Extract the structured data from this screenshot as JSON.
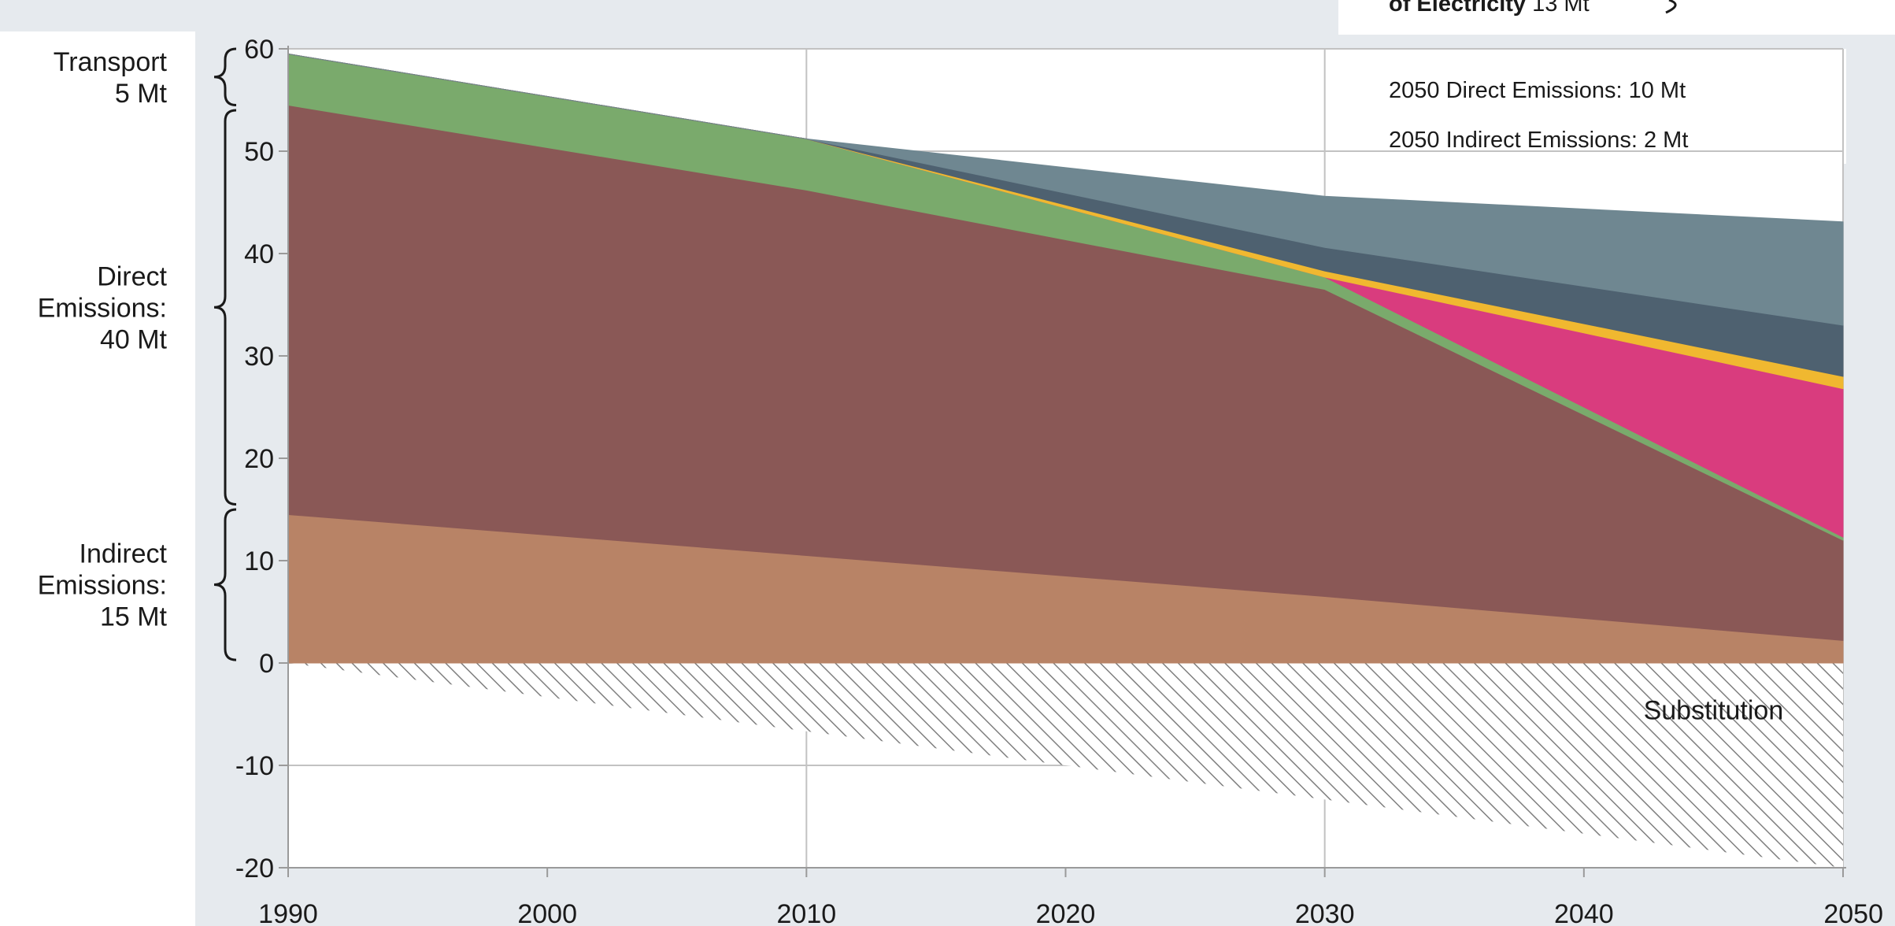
{
  "chart_data": {
    "type": "area",
    "stacked": true,
    "x": [
      1990,
      2010,
      2030,
      2050
    ],
    "xlim": [
      1990,
      2050
    ],
    "ylim": [
      -20,
      60
    ],
    "x_ticks": [
      "1990",
      "2000",
      "2010",
      "2020",
      "2030",
      "2040",
      "2050"
    ],
    "y_ticks": [
      "-20",
      "-10",
      "0",
      "10",
      "20",
      "30",
      "40",
      "50",
      "60"
    ],
    "grid": true,
    "series": [
      {
        "key": "indirect",
        "color": "#b88366",
        "values": [
          14.5,
          10.5,
          6.5,
          2.2
        ]
      },
      {
        "key": "direct",
        "color": "#8a5856",
        "values": [
          40,
          35.7,
          30,
          9.8
        ]
      },
      {
        "key": "transport",
        "color": "#7aaa6c",
        "values": [
          5,
          5,
          1.2,
          0.3
        ]
      },
      {
        "key": "magenta",
        "color": "#d93c7e",
        "values": [
          0,
          0,
          0,
          14.5
        ]
      },
      {
        "key": "yellow",
        "color": "#f0b830",
        "values": [
          0,
          0,
          0.6,
          1.2
        ]
      },
      {
        "key": "dark-slate",
        "color": "#4e6170",
        "values": [
          0,
          0,
          2.3,
          5
        ]
      },
      {
        "key": "light-slate",
        "color": "#6f8791",
        "values": [
          0,
          0,
          5,
          10.1
        ]
      }
    ],
    "substitution": {
      "label": "Substitution",
      "x": [
        1990,
        2050
      ],
      "lower": [
        0,
        -20
      ]
    },
    "side_labels": [
      {
        "lines": [
          "Transport",
          "5 Mt"
        ],
        "range": [
          54.5,
          60
        ]
      },
      {
        "lines": [
          "Direct",
          "Emissions:",
          "40 Mt"
        ],
        "range": [
          15.5,
          54
        ]
      },
      {
        "lines": [
          "Indirect",
          "Emissions:",
          "15 Mt"
        ],
        "range": [
          0.3,
          15
        ]
      }
    ],
    "annotations": {
      "top_bold": "of Electricity",
      "top_value": " 13 Mt",
      "direct_2050": "2050 Direct Emissions: 10 Mt",
      "indirect_2050": "2050 Indirect Emissions: 2 Mt"
    }
  }
}
